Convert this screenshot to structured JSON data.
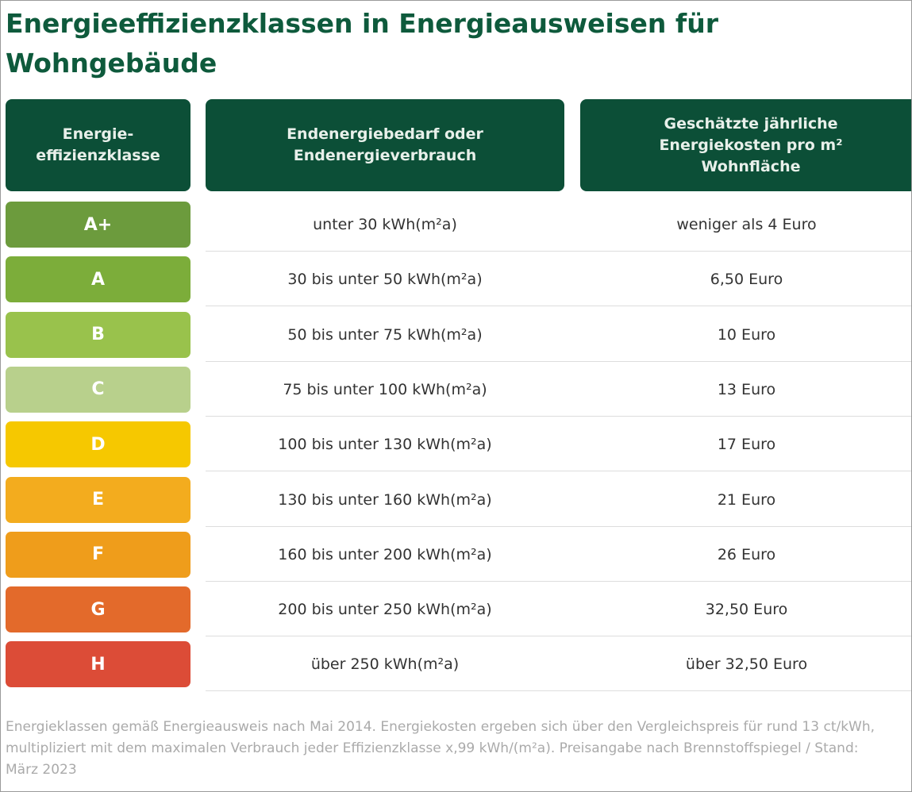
{
  "title": "Energieeffizienzklassen in Energieausweisen für Wohngebäude",
  "headers": [
    "Energie-\neffizienzklasse",
    "Endenergiebedarf oder\nEndenergieverbrauch",
    "Geschätzte jährliche\nEnergiekosten pro m²\nWohnfläche"
  ],
  "rows": [
    {
      "cls": "A+",
      "demand": "unter 30 kWh(m²a)",
      "cost": "weniger als 4 Euro",
      "color": "#6c9b3d"
    },
    {
      "cls": "A",
      "demand": "30 bis unter 50 kWh(m²a)",
      "cost": "6,50 Euro",
      "color": "#7cad3a"
    },
    {
      "cls": "B",
      "demand": "50 bis unter 75 kWh(m²a)",
      "cost": "10 Euro",
      "color": "#99c24c"
    },
    {
      "cls": "C",
      "demand": "75 bis unter 100 kWh(m²a)",
      "cost": "13 Euro",
      "color": "#b8d08c"
    },
    {
      "cls": "D",
      "demand": "100 bis unter 130 kWh(m²a)",
      "cost": "17 Euro",
      "color": "#f6c800"
    },
    {
      "cls": "E",
      "demand": "130 bis unter 160 kWh(m²a)",
      "cost": "21 Euro",
      "color": "#f3ac1e"
    },
    {
      "cls": "F",
      "demand": "160 bis unter 200 kWh(m²a)",
      "cost": "26 Euro",
      "color": "#ef9d1b"
    },
    {
      "cls": "G",
      "demand": "200 bis unter 250 kWh(m²a)",
      "cost": "32,50 Euro",
      "color": "#e36a2b"
    },
    {
      "cls": "H",
      "demand": "über 250 kWh(m²a)",
      "cost": "über 32,50 Euro",
      "color": "#dc4c37"
    }
  ],
  "footnote": "Energieklassen gemäß Energieausweis nach Mai 2014. Energiekosten ergeben sich über den Vergleichspreis für rund 13 ct/kWh, multipliziert mit dem maximalen Verbrauch jeder Effizienzklasse x,99 kWh/(m²a). Preisangabe nach Brennstoffspiegel  /  Stand: März 2023"
}
